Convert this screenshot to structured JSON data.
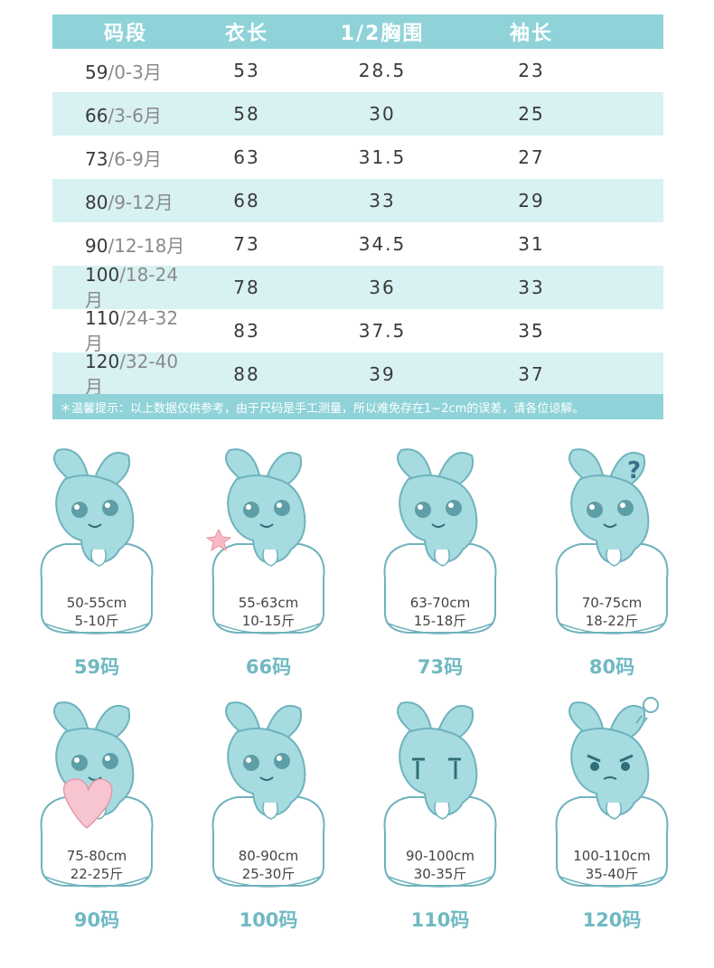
{
  "table": {
    "headers": [
      "码段",
      "衣长",
      "1/2胸围",
      "袖长"
    ],
    "rows": [
      {
        "size": "59",
        "age": "/0-3月",
        "length": "53",
        "chest": "28.5",
        "sleeve": "23"
      },
      {
        "size": "66",
        "age": "/3-6月",
        "length": "58",
        "chest": "30",
        "sleeve": "25"
      },
      {
        "size": "73",
        "age": "/6-9月",
        "length": "63",
        "chest": "31.5",
        "sleeve": "27"
      },
      {
        "size": "80",
        "age": "/9-12月",
        "length": "68",
        "chest": "33",
        "sleeve": "29"
      },
      {
        "size": "90",
        "age": "/12-18月",
        "length": "73",
        "chest": "34.5",
        "sleeve": "31"
      },
      {
        "size": "100",
        "age": "/18-24月",
        "length": "78",
        "chest": "36",
        "sleeve": "33"
      },
      {
        "size": "110",
        "age": "/24-32月",
        "length": "83",
        "chest": "37.5",
        "sleeve": "35"
      },
      {
        "size": "120",
        "age": "/32-40月",
        "length": "88",
        "chest": "39",
        "sleeve": "37"
      }
    ]
  },
  "tip": "＊温馨提示：以上数据仅供参考，由于尺码是手工测量，所以难免存在1~2cm的误差，请各位谅解。",
  "sizes": [
    {
      "height": "50-55cm",
      "weight": "5-10斤",
      "code": "59码",
      "extra": ""
    },
    {
      "height": "55-63cm",
      "weight": "10-15斤",
      "code": "66码",
      "extra": "star"
    },
    {
      "height": "63-70cm",
      "weight": "15-18斤",
      "code": "73码",
      "extra": ""
    },
    {
      "height": "70-75cm",
      "weight": "18-22斤",
      "code": "80码",
      "extra": "question",
      "mark": "?"
    },
    {
      "height": "75-80cm",
      "weight": "22-25斤",
      "code": "90码",
      "extra": "heart"
    },
    {
      "height": "80-90cm",
      "weight": "25-30斤",
      "code": "100码",
      "extra": ""
    },
    {
      "height": "90-100cm",
      "weight": "30-35斤",
      "code": "110码",
      "extra": "crying"
    },
    {
      "height": "100-110cm",
      "weight": "35-40斤",
      "code": "120码",
      "extra": "angry"
    }
  ],
  "colors": {
    "header": "#8fd3d9",
    "row_alt": "#d8f1f3",
    "mascot": "#a6dbe0",
    "outline": "#6fb3bd",
    "code": "#6fb9c2"
  }
}
